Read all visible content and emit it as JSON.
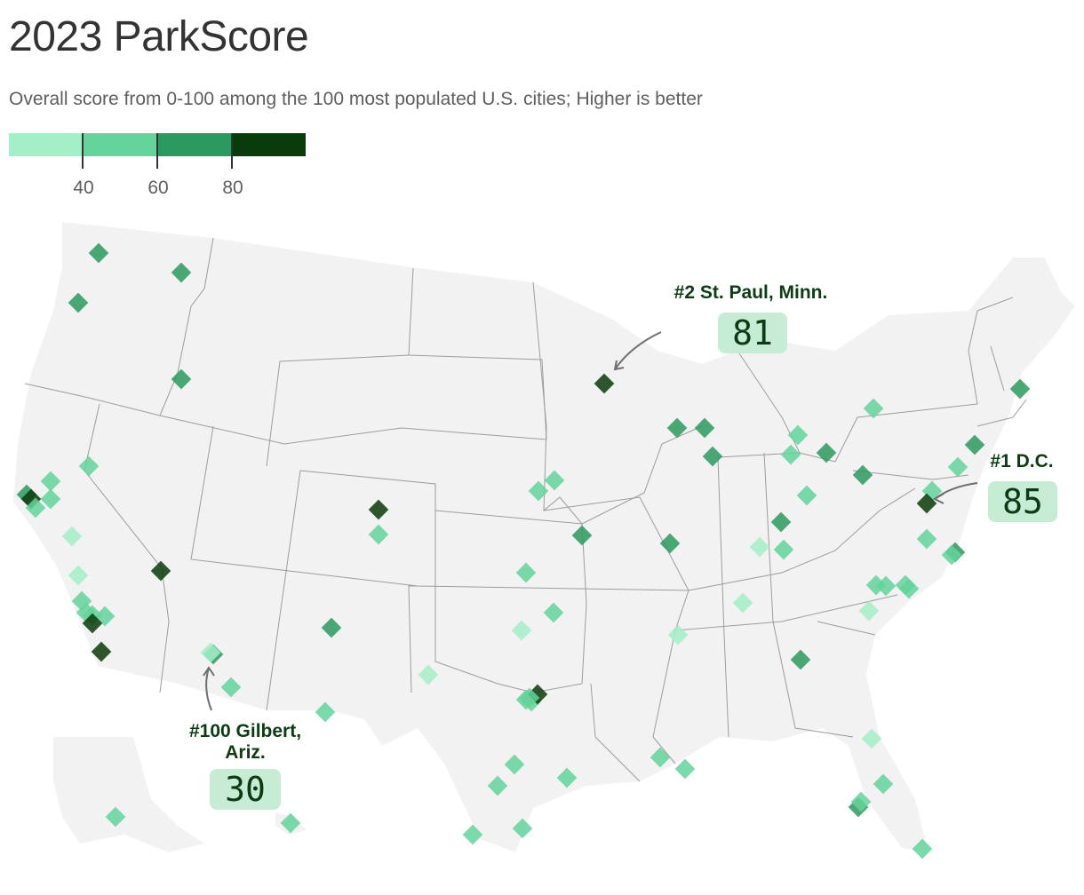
{
  "title": "2023 ParkScore",
  "subtitle": "Overall score from 0-100 among the 100 most populated U.S. cities; Higher is better",
  "legend": {
    "bins": [
      {
        "max": 40,
        "color": "#a3efc6"
      },
      {
        "min": 40,
        "max": 60,
        "color": "#64d49a"
      },
      {
        "min": 60,
        "max": 80,
        "color": "#2b9a5e"
      },
      {
        "min": 80,
        "color": "#0a3b0b"
      }
    ],
    "tick_labels": [
      "40",
      "60",
      "80"
    ]
  },
  "colors": {
    "land": "#f2f2f2",
    "borders": "#9c9c9c",
    "arrow": "#6e6e6e",
    "callout_bg": "#c6ecd5",
    "callout_text": "#0c3d12"
  },
  "callouts": {
    "st_paul": {
      "label": "#2 St. Paul, Minn.",
      "score": "81"
    },
    "dc": {
      "label": "#1 D.C.",
      "score": "85"
    },
    "gilbert": {
      "label_line1": "#100 Gilbert,",
      "label_line2": "Ariz.",
      "score": "30"
    }
  }
}
